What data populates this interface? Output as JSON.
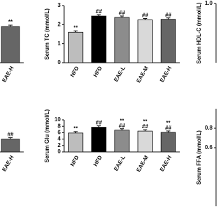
{
  "chart_data": [
    {
      "type": "bar",
      "categories": [
        "EAE-H"
      ],
      "values": [
        1.9
      ],
      "colors": [
        "#666666"
      ],
      "annotations": [
        [
          "**"
        ]
      ],
      "ylim": [
        0,
        3
      ]
    },
    {
      "type": "bar",
      "y_label": "Serum TC (mmol/L)",
      "categories": [
        "NFD",
        "HFD",
        "EAE-L",
        "EAE-M",
        "EAE-H"
      ],
      "values": [
        1.6,
        2.45,
        2.38,
        2.25,
        2.28
      ],
      "colors": [
        "#bdbdbd",
        "#000000",
        "#8c8c8c",
        "#d9d9d9",
        "#666666"
      ],
      "annotations": [
        [
          "**"
        ],
        [
          "##"
        ],
        [
          "##"
        ],
        [
          "##"
        ],
        [
          "##"
        ]
      ],
      "ylim": [
        0,
        3
      ],
      "yticks": [
        0,
        1,
        2,
        3
      ]
    },
    {
      "type": "bar",
      "y_label": "Serum HDL-C (mmol/L)",
      "ylim": [
        0,
        1
      ],
      "yticks": [
        {
          "value": 1,
          "label": "1.0"
        }
      ]
    },
    {
      "type": "bar",
      "categories": [
        "EAE-H"
      ],
      "values": [
        4
      ],
      "colors": [
        "#666666"
      ],
      "annotations": [
        [
          "##"
        ]
      ],
      "ylim": [
        0,
        10
      ]
    },
    {
      "type": "bar",
      "y_label": "Serum Glu (mmol/L)",
      "categories": [
        "NFD",
        "HFD",
        "EAE-L",
        "EAE-M",
        "EAE-H"
      ],
      "values": [
        5.9,
        7.7,
        6.8,
        6.5,
        6.1
      ],
      "colors": [
        "#bdbdbd",
        "#000000",
        "#8c8c8c",
        "#d9d9d9",
        "#666666"
      ],
      "annotations": [
        [
          "**"
        ],
        [
          "##"
        ],
        [
          "**",
          "##"
        ],
        [
          "**",
          "##"
        ],
        [
          "**",
          "##"
        ]
      ],
      "ylim": [
        0,
        10
      ],
      "yticks": [
        0,
        2,
        4,
        6,
        8,
        10
      ]
    },
    {
      "type": "bar",
      "y_label": "Serum FFA (mmol/L)",
      "ylim": [
        0,
        1
      ],
      "yticks": [
        0.6,
        0.8
      ]
    }
  ]
}
